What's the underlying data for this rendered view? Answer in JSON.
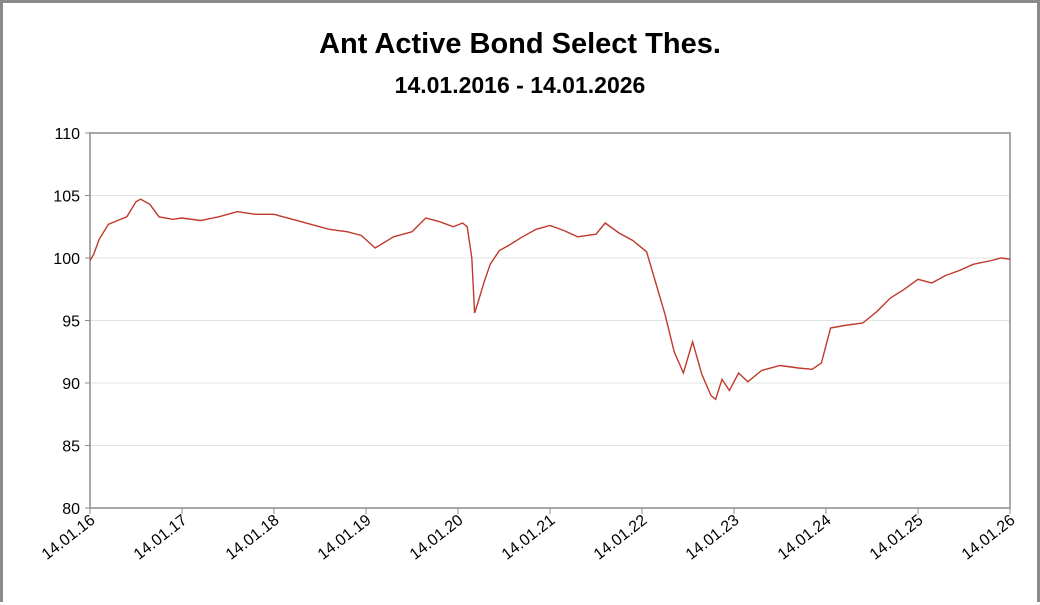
{
  "chart_data": {
    "type": "line",
    "title": "Ant Active Bond Select Thes.",
    "subtitle": "14.01.2016 - 14.01.2026",
    "xlabel": "",
    "ylabel": "",
    "ylim": [
      80,
      110
    ],
    "yticks": [
      "80",
      "85",
      "90",
      "95",
      "100",
      "105",
      "110"
    ],
    "xticks": [
      "14.01.16",
      "14.01.17",
      "14.01.18",
      "14.01.19",
      "14.01.20",
      "14.01.21",
      "14.01.22",
      "14.01.23",
      "14.01.24",
      "14.01.25",
      "14.01.26"
    ],
    "grid": "horizontal",
    "line_color": "#c0392b",
    "series": [
      {
        "x": [
          2016.0,
          2016.04,
          2016.1,
          2016.2,
          2016.3,
          2016.4,
          2016.5,
          2016.55,
          2016.65,
          2016.75,
          2016.9,
          2017.0,
          2017.2,
          2017.4,
          2017.6,
          2017.8,
          2018.0,
          2018.2,
          2018.4,
          2018.6,
          2018.8,
          2018.95,
          2019.1,
          2019.3,
          2019.5,
          2019.65,
          2019.8,
          2019.95,
          2020.05,
          2020.1,
          2020.15,
          2020.18,
          2020.22,
          2020.28,
          2020.35,
          2020.45,
          2020.55,
          2020.7,
          2020.85,
          2021.0,
          2021.15,
          2021.3,
          2021.5,
          2021.6,
          2021.75,
          2021.9,
          2022.05,
          2022.15,
          2022.25,
          2022.35,
          2022.45,
          2022.55,
          2022.65,
          2022.75,
          2022.8,
          2022.87,
          2022.95,
          2023.05,
          2023.15,
          2023.3,
          2023.5,
          2023.7,
          2023.85,
          2023.95,
          2024.05,
          2024.2,
          2024.4,
          2024.55,
          2024.7,
          2024.85,
          2025.0,
          2025.15,
          2025.3,
          2025.45,
          2025.6,
          2025.8,
          2025.9,
          2026.0
        ],
        "values": [
          99.8,
          100.3,
          101.5,
          102.7,
          103.0,
          103.3,
          104.5,
          104.7,
          104.3,
          103.3,
          103.1,
          103.2,
          103.0,
          103.3,
          103.7,
          103.5,
          103.5,
          103.1,
          102.7,
          102.3,
          102.1,
          101.8,
          100.8,
          101.7,
          102.1,
          103.2,
          102.9,
          102.5,
          102.8,
          102.5,
          100.0,
          95.6,
          96.5,
          98.0,
          99.5,
          100.6,
          101.0,
          101.7,
          102.3,
          102.6,
          102.2,
          101.7,
          101.9,
          102.8,
          102.0,
          101.4,
          100.5,
          98.0,
          95.5,
          92.5,
          90.8,
          93.3,
          90.7,
          89.0,
          88.7,
          90.3,
          89.4,
          90.8,
          90.1,
          91.0,
          91.4,
          91.2,
          91.1,
          91.6,
          94.4,
          94.6,
          94.8,
          95.7,
          96.8,
          97.5,
          98.3,
          98.0,
          98.6,
          99.0,
          99.5,
          99.8,
          100.0,
          99.9
        ]
      }
    ]
  }
}
